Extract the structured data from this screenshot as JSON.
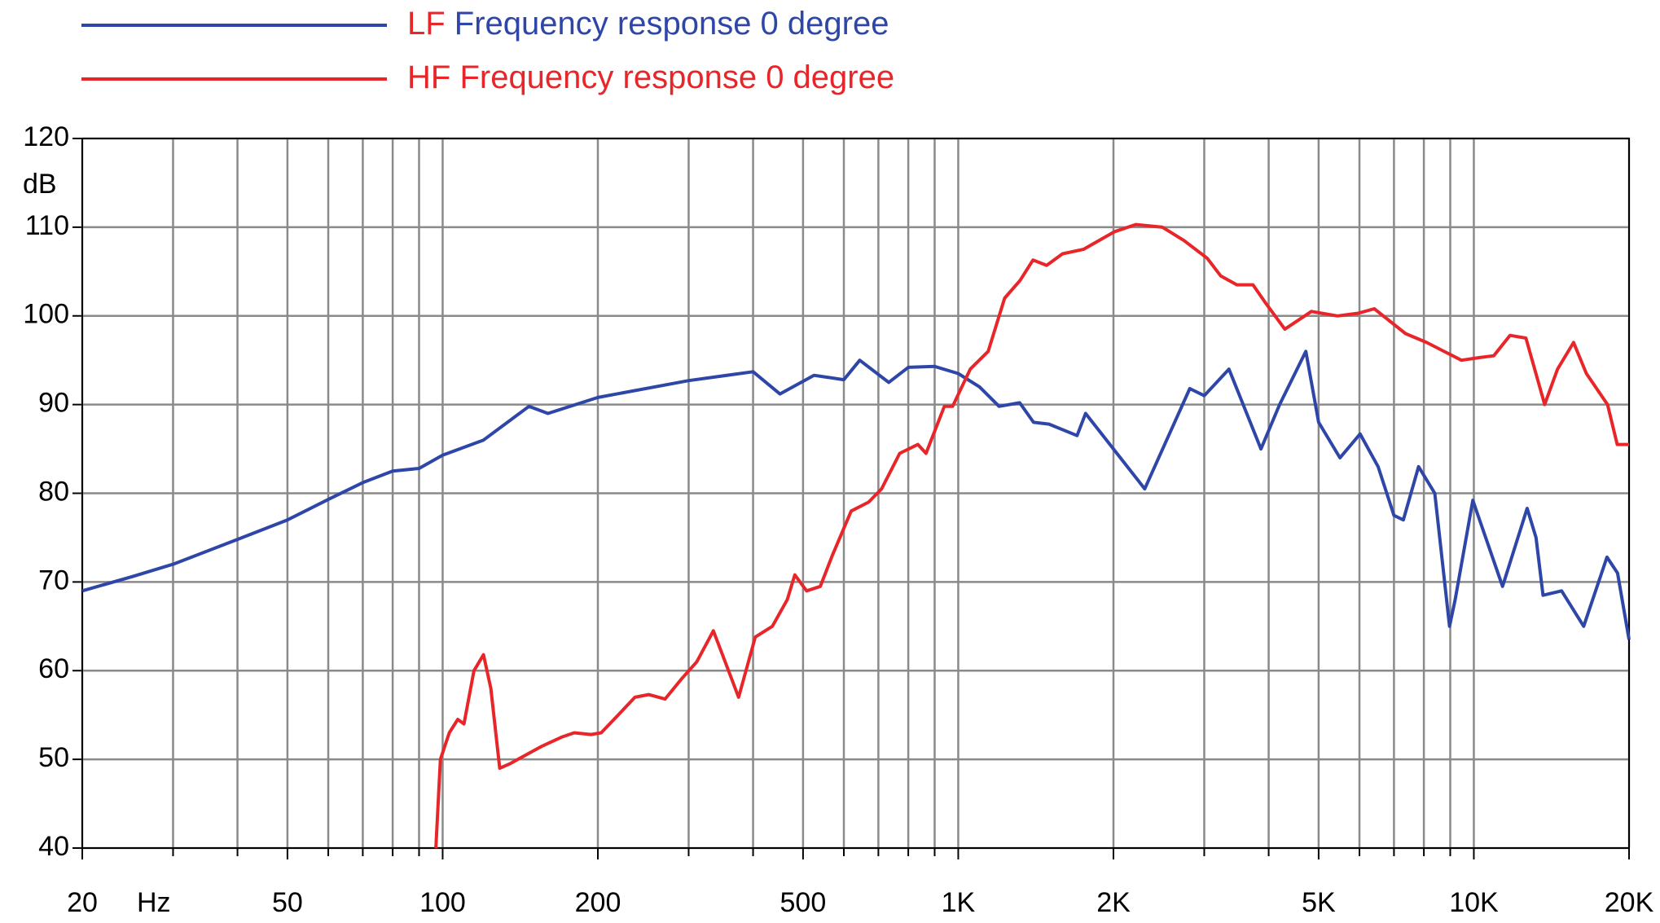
{
  "chart_data": {
    "type": "line",
    "log_x": true,
    "grid": true,
    "y_label": "dB",
    "x_label": "Hz",
    "xlim": [
      20,
      20000
    ],
    "ylim": [
      40,
      120
    ],
    "xticks": [
      20,
      50,
      100,
      200,
      500,
      {
        "value": 1000,
        "label": "1K"
      },
      {
        "value": 2000,
        "label": "2K"
      },
      {
        "value": 5000,
        "label": "5K"
      },
      {
        "value": 10000,
        "label": "10K"
      },
      {
        "value": 20000,
        "label": "20K"
      }
    ],
    "xminor_ticks": [
      30,
      40,
      60,
      70,
      80,
      90,
      300,
      400,
      600,
      700,
      800,
      900,
      3000,
      4000,
      6000,
      7000,
      8000,
      9000
    ],
    "yticks": [
      40,
      50,
      60,
      70,
      80,
      90,
      100,
      110,
      120
    ],
    "series": [
      {
        "name": "LF Frequency response 0 degree",
        "color": "#2e46a8",
        "x": [
          20,
          25,
          30,
          40,
          50,
          60,
          70,
          80,
          90,
          100,
          120,
          147,
          160,
          200,
          300,
          400,
          451,
          525,
          600,
          644,
          733,
          800,
          900,
          1000,
          1100,
          1200,
          1316,
          1400,
          1500,
          1700,
          1766,
          2000,
          2300,
          2812,
          3000,
          3350,
          3865,
          4200,
          4722,
          5000,
          5500,
          6017,
          6520,
          7000,
          7300,
          7813,
          8400,
          8970,
          9200,
          9955,
          11370,
          12690,
          13200,
          13620,
          14800,
          16330,
          18120,
          19000,
          20000
        ],
        "values": [
          69,
          70.6,
          72,
          74.8,
          77,
          79.3,
          81.2,
          82.5,
          82.8,
          84.3,
          86,
          89.8,
          89,
          90.8,
          92.7,
          93.7,
          91.2,
          93.3,
          92.8,
          95,
          92.5,
          94.2,
          94.3,
          93.5,
          92,
          89.8,
          90.2,
          88,
          87.8,
          86.5,
          89,
          85,
          80.5,
          91.8,
          91,
          94,
          85,
          90,
          96,
          88,
          84,
          86.7,
          83,
          77.5,
          77,
          83,
          80,
          65,
          68,
          79.2,
          69.5,
          78.3,
          75,
          68.5,
          69,
          65,
          72.8,
          71,
          63.5
        ]
      },
      {
        "name": "HF Frequency response 0 degree",
        "color": "#e8262a",
        "x": [
          97,
          99,
          103,
          107,
          110,
          115,
          120,
          124,
          129,
          135,
          145,
          156,
          170,
          180,
          194,
          203,
          219,
          236,
          251,
          270,
          290,
          311,
          335,
          375,
          404,
          436,
          466,
          482,
          508,
          540,
          570,
          620,
          670,
          710,
          770,
          835,
          866,
          940,
          975,
          1055,
          1143,
          1230,
          1318,
          1396,
          1484,
          1593,
          1749,
          2012,
          2210,
          2490,
          2740,
          3040,
          3230,
          3470,
          3730,
          3940,
          4300,
          4840,
          5440,
          5970,
          6410,
          7370,
          8100,
          9460,
          10270,
          10930,
          11750,
          12620,
          13720,
          14530,
          15610,
          16530,
          18170,
          18970,
          20000
        ],
        "values": [
          40,
          50,
          53,
          54.5,
          54,
          60,
          61.8,
          58,
          49,
          49.5,
          50.5,
          51.5,
          52.5,
          53,
          52.8,
          53,
          55,
          57,
          57.3,
          56.8,
          59,
          61,
          64.5,
          57,
          63.8,
          65,
          68,
          70.8,
          69,
          69.5,
          73,
          78,
          79,
          80.5,
          84.5,
          85.5,
          84.5,
          89.8,
          89.8,
          94,
          96,
          102,
          104,
          106.3,
          105.7,
          107,
          107.5,
          109.5,
          110.3,
          110,
          108.5,
          106.5,
          104.5,
          103.5,
          103.5,
          101.5,
          98.5,
          100.5,
          100,
          100.3,
          100.8,
          98,
          97,
          95,
          95.3,
          95.5,
          97.8,
          97.5,
          90,
          94,
          97,
          93.5,
          90,
          85.5,
          85.5
        ]
      }
    ]
  }
}
